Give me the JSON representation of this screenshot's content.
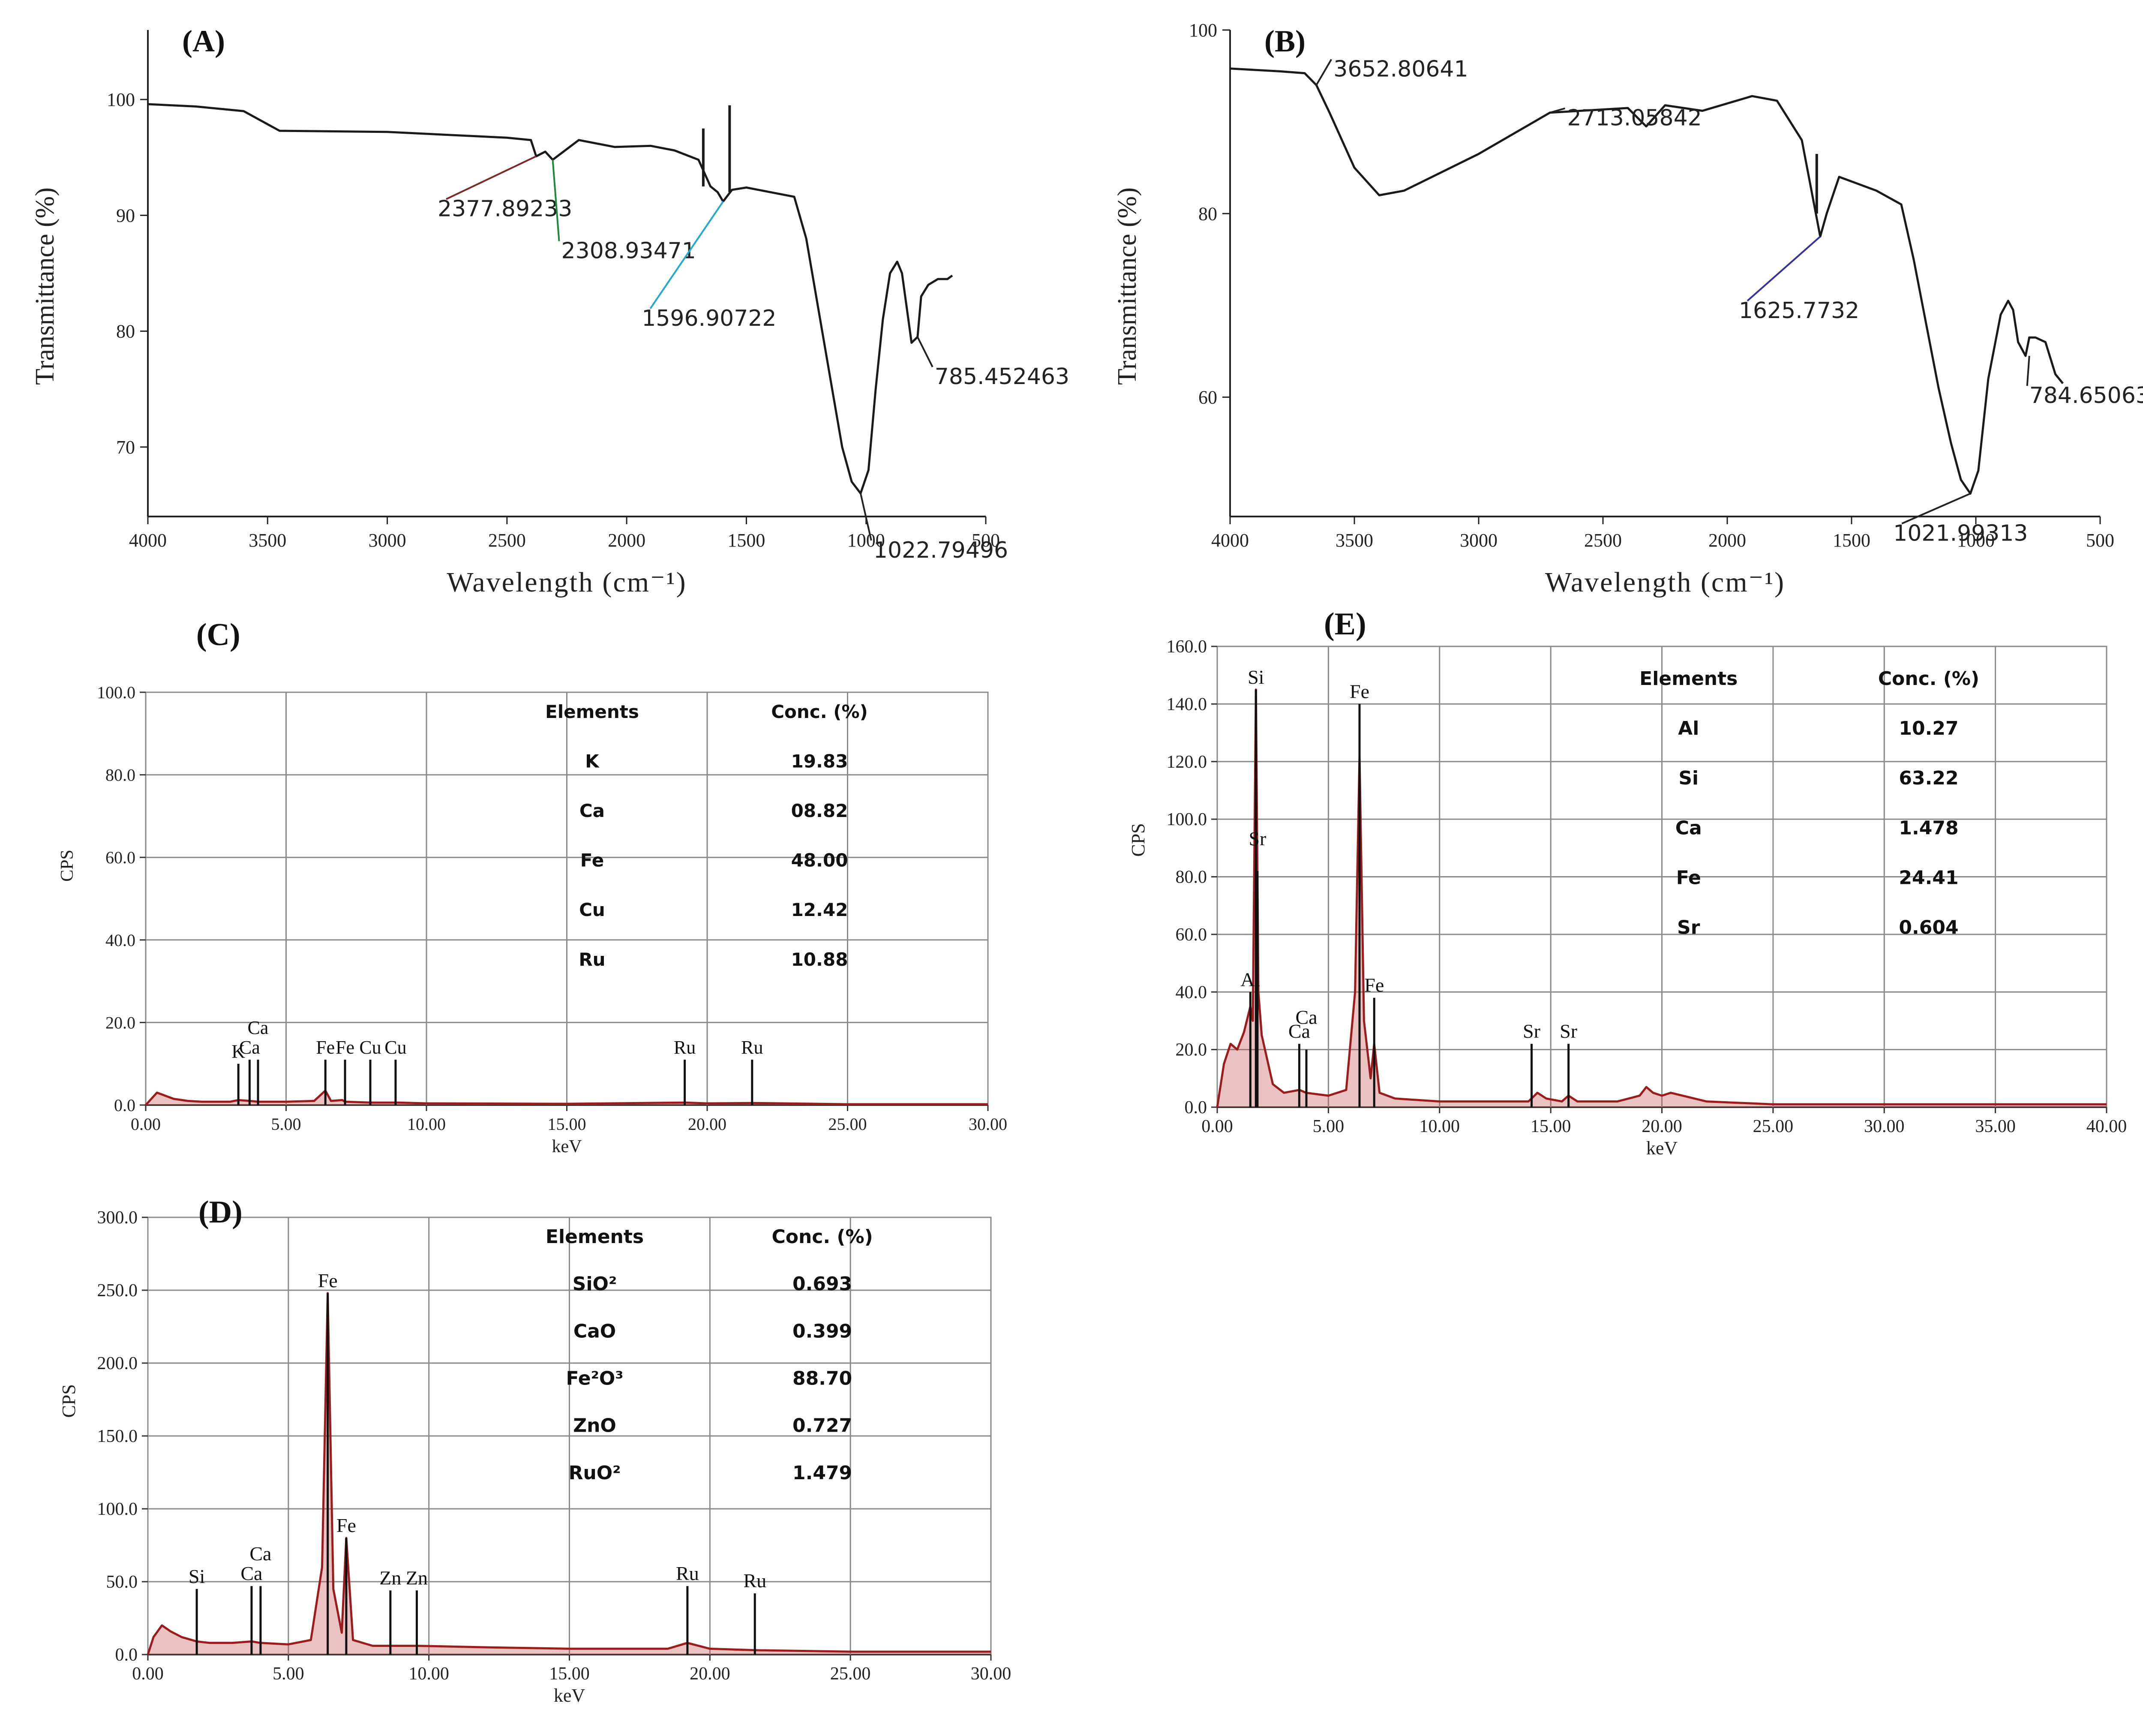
{
  "figure_caption": "",
  "chart_data": [
    {
      "id": "A",
      "type": "line",
      "panel_label": "(A)",
      "xlabel": "Wavelength (cm⁻¹)",
      "ylabel": "Transmittance (%)",
      "x_reversed": true,
      "xlim": [
        4000,
        500
      ],
      "ylim": [
        64,
        106
      ],
      "xticks": [
        4000,
        3500,
        3000,
        2500,
        2000,
        1500,
        1000,
        500
      ],
      "yticks": [
        70,
        80,
        90,
        100
      ],
      "x": [
        4000,
        3800,
        3600,
        3450,
        3000,
        2500,
        2400,
        2378,
        2340,
        2309,
        2200,
        2050,
        1900,
        1800,
        1700,
        1650,
        1620,
        1597,
        1560,
        1500,
        1400,
        1300,
        1250,
        1200,
        1150,
        1100,
        1060,
        1023,
        990,
        960,
        930,
        900,
        870,
        850,
        830,
        810,
        785,
        770,
        740,
        700,
        660,
        640
      ],
      "y": [
        99.6,
        99.4,
        99.0,
        97.3,
        97.2,
        96.7,
        96.5,
        95.1,
        95.5,
        94.8,
        96.5,
        95.9,
        96.0,
        95.6,
        94.8,
        92.5,
        92.0,
        91.2,
        92.2,
        92.4,
        92.0,
        91.6,
        88.0,
        82.0,
        76.0,
        70.0,
        67.0,
        66.0,
        68.0,
        75.0,
        81.0,
        85.0,
        86.0,
        85.0,
        82.0,
        79.0,
        79.5,
        83.0,
        84.0,
        84.5,
        84.5,
        84.8
      ],
      "spikes": [
        {
          "x": 1680,
          "y_low": 92.5,
          "y_high": 97.5
        },
        {
          "x": 1570,
          "y_low": 92.0,
          "y_high": 99.5
        }
      ],
      "annotations": [
        {
          "text": "2377.89233",
          "x": 2378,
          "y": 95.1,
          "color": "#7a2a2a"
        },
        {
          "text": "2308.93471",
          "x": 2309,
          "y": 94.8,
          "color": "#1a8a3a"
        },
        {
          "text": "1596.90722",
          "x": 1597,
          "y": 91.2,
          "color": "#22aacc"
        },
        {
          "text": "785.452463",
          "x": 785,
          "y": 79.5,
          "color": "#222222"
        },
        {
          "text": "1022.79496",
          "x": 1023,
          "y": 66.0,
          "color": "#222222"
        }
      ]
    },
    {
      "id": "B",
      "type": "line",
      "panel_label": "(B)",
      "xlabel": "Wavelength (cm⁻¹)",
      "ylabel": "Transmittance (%)",
      "x_reversed": true,
      "xlim": [
        4000,
        500
      ],
      "ylim": [
        47,
        100
      ],
      "xticks": [
        4000,
        3500,
        3000,
        2500,
        2000,
        1500,
        1000,
        500
      ],
      "yticks": [
        60,
        80,
        100
      ],
      "x": [
        4000,
        3800,
        3700,
        3653,
        3600,
        3500,
        3400,
        3300,
        3000,
        2713,
        2400,
        2326,
        2250,
        2100,
        1900,
        1800,
        1700,
        1626,
        1600,
        1550,
        1500,
        1400,
        1300,
        1250,
        1200,
        1150,
        1100,
        1060,
        1022,
        990,
        950,
        900,
        870,
        850,
        830,
        800,
        785,
        760,
        720,
        680,
        650
      ],
      "y": [
        95.8,
        95.5,
        95.3,
        94.0,
        91.0,
        85.0,
        82.0,
        82.5,
        86.5,
        91.0,
        91.5,
        89.5,
        91.8,
        91.2,
        92.8,
        92.3,
        88.0,
        77.5,
        80.0,
        84.0,
        83.5,
        82.5,
        81.0,
        75.0,
        68.0,
        61.0,
        55.0,
        51.0,
        49.5,
        52.0,
        62.0,
        69.0,
        70.5,
        69.5,
        66.0,
        64.5,
        66.5,
        66.5,
        66.0,
        62.5,
        61.5
      ],
      "spikes": [
        {
          "x": 1640,
          "y_low": 80.0,
          "y_high": 86.5
        }
      ],
      "annotations": [
        {
          "text": "3652.80641",
          "x": 3653,
          "y": 94.0,
          "color": "#222222"
        },
        {
          "text": "2713.05842",
          "x": 2713,
          "y": 91.0,
          "color": "#222222"
        },
        {
          "text": "1625.7732",
          "x": 1626,
          "y": 77.5,
          "color": "#333399"
        },
        {
          "text": "784.65063",
          "x": 785,
          "y": 64.5,
          "color": "#222222"
        },
        {
          "text": "1021.99313",
          "x": 1022,
          "y": 49.5,
          "color": "#222222"
        }
      ]
    },
    {
      "id": "C",
      "type": "line",
      "panel_label": "(C)",
      "xlabel": "keV",
      "ylabel": "CPS",
      "xlim": [
        0,
        30
      ],
      "ylim": [
        0,
        100
      ],
      "xticks": [
        "0.00",
        "5.00",
        "10.00",
        "15.00",
        "20.00",
        "25.00",
        "30.00"
      ],
      "yticks": [
        "0.0",
        "20.0",
        "40.0",
        "60.0",
        "80.0",
        "100.0"
      ],
      "x": [
        0,
        0.2,
        0.4,
        0.6,
        1.0,
        1.5,
        2.0,
        3.0,
        3.3,
        3.7,
        4.0,
        5.0,
        6.0,
        6.4,
        6.6,
        7.0,
        7.1,
        8.0,
        9.0,
        10.0,
        15.0,
        19.2,
        20.0,
        21.6,
        25.0,
        30.0
      ],
      "y": [
        0,
        1.5,
        3.0,
        2.5,
        1.5,
        1.0,
        0.8,
        0.8,
        1.2,
        1.0,
        0.8,
        0.8,
        1.0,
        3.5,
        1.0,
        1.2,
        0.8,
        0.6,
        0.6,
        0.4,
        0.3,
        0.6,
        0.4,
        0.5,
        0.2,
        0.2
      ],
      "peak_labels": [
        {
          "text": "K",
          "x": 3.3,
          "line_top": 10.0
        },
        {
          "text": "Ca",
          "x": 3.7,
          "line_top": 11.0
        },
        {
          "text": "Ca",
          "x": 4.0,
          "line_top": 11.0
        },
        {
          "text": "Fe",
          "x": 6.4,
          "line_top": 11.0
        },
        {
          "text": "Fe",
          "x": 7.1,
          "line_top": 11.0
        },
        {
          "text": "Cu",
          "x": 8.0,
          "line_top": 11.0
        },
        {
          "text": "Cu",
          "x": 8.9,
          "line_top": 11.0
        },
        {
          "text": "Ru",
          "x": 19.2,
          "line_top": 11.0
        },
        {
          "text": "Ru",
          "x": 21.6,
          "line_top": 11.0
        }
      ],
      "table": {
        "headers": [
          "Elements",
          "Conc. (%)"
        ],
        "rows": [
          [
            "K",
            "19.83"
          ],
          [
            "Ca",
            "08.82"
          ],
          [
            "Fe",
            "48.00"
          ],
          [
            "Cu",
            "12.42"
          ],
          [
            "Ru",
            "10.88"
          ]
        ]
      }
    },
    {
      "id": "D",
      "type": "line",
      "panel_label": "(D)",
      "xlabel": "keV",
      "ylabel": "CPS",
      "xlim": [
        0,
        30
      ],
      "ylim": [
        0,
        300
      ],
      "xticks": [
        "0.00",
        "5.00",
        "10.00",
        "15.00",
        "20.00",
        "25.00",
        "30.00"
      ],
      "yticks": [
        "0.0",
        "50.0",
        "100.0",
        "150.0",
        "200.0",
        "250.0",
        "300.0"
      ],
      "x": [
        0,
        0.2,
        0.5,
        0.8,
        1.2,
        1.74,
        2.2,
        3.0,
        3.7,
        4.0,
        5.0,
        5.8,
        6.2,
        6.4,
        6.6,
        6.9,
        7.06,
        7.3,
        8.0,
        8.6,
        9.6,
        12.0,
        15.0,
        18.5,
        19.2,
        20.0,
        21.6,
        25.0,
        30.0
      ],
      "y": [
        0,
        12,
        20,
        16,
        12,
        9,
        8,
        8,
        9,
        8,
        7,
        10,
        60,
        248,
        45,
        15,
        80,
        10,
        6,
        6,
        6,
        5,
        4,
        4,
        8,
        4,
        3,
        2,
        2
      ],
      "peak_labels": [
        {
          "text": "Si",
          "x": 1.74,
          "line_top": 45
        },
        {
          "text": "Ca",
          "x": 3.69,
          "line_top": 47
        },
        {
          "text": "Ca",
          "x": 4.01,
          "line_top": 47
        },
        {
          "text": "Fe",
          "x": 6.4,
          "line_top": 248
        },
        {
          "text": "Fe",
          "x": 7.06,
          "line_top": 80
        },
        {
          "text": "Zn",
          "x": 8.63,
          "line_top": 44
        },
        {
          "text": "Zn",
          "x": 9.57,
          "line_top": 44
        },
        {
          "text": "Ru",
          "x": 19.2,
          "line_top": 47
        },
        {
          "text": "Ru",
          "x": 21.6,
          "line_top": 42
        }
      ],
      "table": {
        "headers": [
          "Elements",
          "Conc. (%)"
        ],
        "rows": [
          [
            "SiO²",
            "0.693"
          ],
          [
            "CaO",
            "0.399"
          ],
          [
            "Fe²O³",
            "88.70"
          ],
          [
            "ZnO",
            "0.727"
          ],
          [
            "RuO²",
            "1.479"
          ]
        ]
      }
    },
    {
      "id": "E",
      "type": "line",
      "panel_label": "(E)",
      "xlabel": "keV",
      "ylabel": "CPS",
      "xlim": [
        0,
        40
      ],
      "ylim": [
        0,
        160
      ],
      "xticks": [
        "0.00",
        "5.00",
        "10.00",
        "15.00",
        "20.00",
        "25.00",
        "30.00",
        "35.00",
        "40.00"
      ],
      "yticks": [
        "0.0",
        "20.0",
        "40.0",
        "60.0",
        "80.0",
        "100.0",
        "120.0",
        "140.0",
        "160.0"
      ],
      "x": [
        0,
        0.3,
        0.6,
        0.9,
        1.2,
        1.49,
        1.6,
        1.74,
        1.85,
        2.0,
        2.5,
        3.0,
        3.7,
        4.0,
        5.0,
        5.8,
        6.2,
        6.4,
        6.6,
        6.9,
        7.06,
        7.3,
        8.0,
        10.0,
        12.0,
        14.0,
        14.4,
        14.8,
        15.5,
        15.8,
        16.2,
        18.0,
        19.0,
        19.3,
        19.6,
        20.0,
        20.4,
        22.0,
        25.0,
        30.0,
        40.0
      ],
      "y": [
        0,
        15,
        22,
        20,
        26,
        35,
        30,
        145,
        40,
        25,
        8,
        5,
        6,
        5,
        4,
        6,
        40,
        122,
        30,
        10,
        22,
        5,
        3,
        2,
        2,
        2,
        5,
        3,
        2,
        4,
        2,
        2,
        4,
        7,
        5,
        4,
        5,
        2,
        1,
        1,
        1
      ],
      "peak_labels": [
        {
          "text": "Si",
          "x": 1.74,
          "line_top": 145
        },
        {
          "text": "Sr",
          "x": 1.81,
          "line_top": 82
        },
        {
          "text": "Al",
          "x": 1.49,
          "line_top": 40
        },
        {
          "text": "Ca",
          "x": 3.69,
          "line_top": 22
        },
        {
          "text": "Ca",
          "x": 4.01,
          "line_top": 20
        },
        {
          "text": "Fe",
          "x": 6.4,
          "line_top": 140
        },
        {
          "text": "Fe",
          "x": 7.06,
          "line_top": 38
        },
        {
          "text": "Sr",
          "x": 14.14,
          "line_top": 22
        },
        {
          "text": "Sr",
          "x": 15.8,
          "line_top": 22
        }
      ],
      "table": {
        "headers": [
          "Elements",
          "Conc. (%)"
        ],
        "rows": [
          [
            "Al",
            "10.27"
          ],
          [
            "Si",
            "63.22"
          ],
          [
            "Ca",
            "1.478"
          ],
          [
            "Fe",
            "24.41"
          ],
          [
            "Sr",
            "0.604"
          ]
        ]
      }
    }
  ]
}
